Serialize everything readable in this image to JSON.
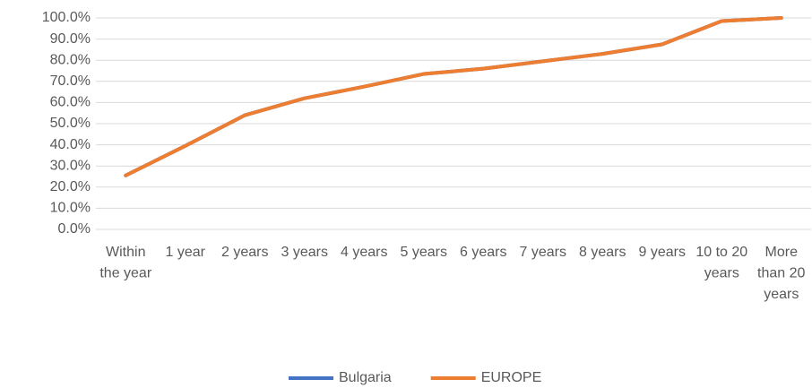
{
  "chart_data": {
    "type": "line",
    "categories": [
      "Within the year",
      "1 year",
      "2 years",
      "3 years",
      "4 years",
      "5 years",
      "6 years",
      "7 years",
      "8 years",
      "9 years",
      "10 to 20 years",
      "More than 20 years"
    ],
    "series": [
      {
        "name": "Bulgaria",
        "color": "#4472c4",
        "values": [
          25.5,
          39.5,
          54,
          62,
          67.5,
          73.5,
          76,
          79.5,
          83,
          87.5,
          98.5,
          100
        ]
      },
      {
        "name": "EUROPE",
        "color": "#ed7d31",
        "values": [
          25.5,
          39.5,
          54,
          62,
          67.5,
          73.5,
          76,
          79.5,
          83,
          87.5,
          98.5,
          100
        ]
      }
    ],
    "ylim": [
      0,
      100
    ],
    "yticks": [
      {
        "value": 0,
        "label": "0.0%"
      },
      {
        "value": 10,
        "label": "10.0%"
      },
      {
        "value": 20,
        "label": "20.0%"
      },
      {
        "value": 30,
        "label": "30.0%"
      },
      {
        "value": 40,
        "label": "40.0%"
      },
      {
        "value": 50,
        "label": "50.0%"
      },
      {
        "value": 60,
        "label": "60.0%"
      },
      {
        "value": 70,
        "label": "70.0%"
      },
      {
        "value": 80,
        "label": "80.0%"
      },
      {
        "value": 90,
        "label": "90.0%"
      },
      {
        "value": 100,
        "label": "100.0%"
      }
    ],
    "grid": true,
    "legend": "bottom"
  }
}
